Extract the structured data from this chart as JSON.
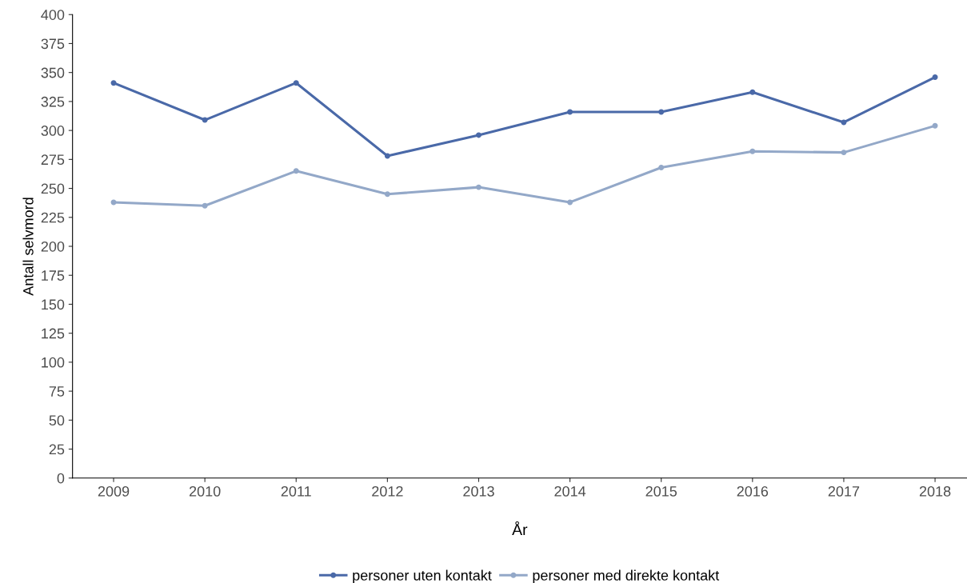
{
  "chart_data": {
    "type": "line",
    "xlabel": "År",
    "ylabel": "Antall selvmord",
    "categories": [
      "2009",
      "2010",
      "2011",
      "2012",
      "2013",
      "2014",
      "2015",
      "2016",
      "2017",
      "2018"
    ],
    "series": [
      {
        "name": "personer uten kontakt",
        "color": "#4a69a8",
        "values": [
          341,
          309,
          341,
          278,
          296,
          316,
          316,
          333,
          307,
          346
        ]
      },
      {
        "name": "personer med direkte kontakt",
        "color": "#93a8c8",
        "values": [
          238,
          235,
          265,
          245,
          251,
          238,
          268,
          282,
          281,
          304
        ]
      }
    ],
    "ylim": [
      0,
      400
    ],
    "yticks": [
      0,
      25,
      50,
      75,
      100,
      125,
      150,
      175,
      200,
      225,
      250,
      275,
      300,
      325,
      350,
      375,
      400
    ],
    "grid": false,
    "legend": "bottom",
    "marker": "circle",
    "line_style": "solid"
  }
}
